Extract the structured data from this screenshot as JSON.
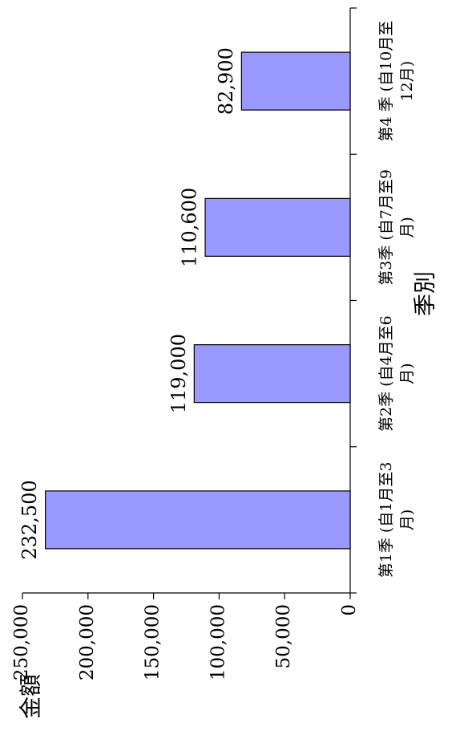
{
  "chart_data": {
    "type": "bar",
    "orientation": "rotated-90-counterclockwise",
    "categories": [
      [
        "第1季 (自1月至3",
        "月)"
      ],
      [
        "第2季 (自4月至6",
        "月)"
      ],
      [
        "第3季 (自7月至9",
        "月)"
      ],
      [
        "第4 季 (自10月至",
        "12月)"
      ]
    ],
    "values": [
      232500,
      119000,
      110600,
      82900
    ],
    "data_labels": [
      "232,500",
      "119,000",
      "110,600",
      "82,900"
    ],
    "xlabel": "季別",
    "ylabel": "金額",
    "ylim": [
      0,
      250000
    ],
    "yticks": [
      0,
      50000,
      100000,
      150000,
      200000,
      250000
    ],
    "ytick_labels": [
      "0",
      "50,000",
      "100,000",
      "150,000",
      "200,000",
      "250,000"
    ],
    "grid": false,
    "legend": "none",
    "bar_color": "#9999ff",
    "bar_edge_color": "#000000"
  }
}
